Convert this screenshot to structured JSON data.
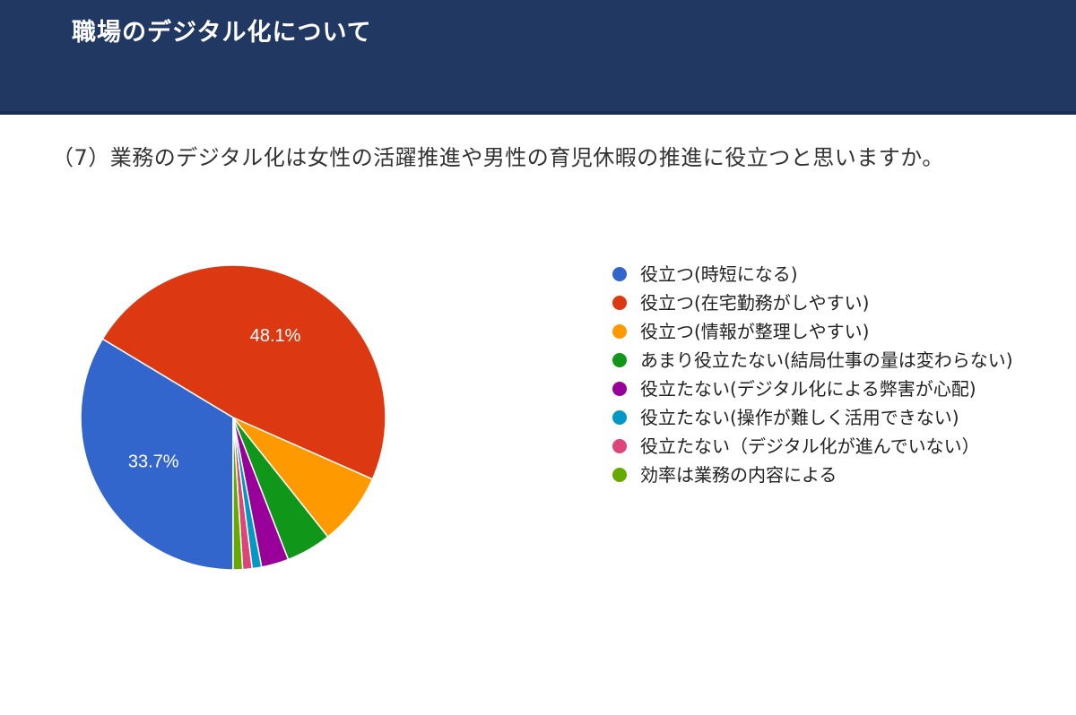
{
  "header": {
    "title": "職場のデジタル化について",
    "bg_color": "#213863"
  },
  "question": "（7）業務のデジタル化は女性の活躍推進や男性の育児休暇の推進に役立つと思いますか。",
  "chart_data": {
    "type": "pie",
    "title": "",
    "start_angle_deg": 90,
    "direction": "clockwise",
    "legend_position": "right",
    "slices": [
      {
        "label": "役立つ(時短になる)",
        "value": 33.7,
        "color": "#3366CC",
        "data_label": "33.7%"
      },
      {
        "label": "役立つ(在宅勤務がしやすい)",
        "value": 48.1,
        "color": "#DC3912",
        "data_label": "48.1%"
      },
      {
        "label": "役立つ(情報が整理しやすい)",
        "value": 7.7,
        "color": "#FF9900",
        "data_label": ""
      },
      {
        "label": "あまり役立たない(結局仕事の量は変わらない)",
        "value": 4.8,
        "color": "#109618",
        "data_label": ""
      },
      {
        "label": "役立たない(デジタル化による弊害が心配)",
        "value": 2.9,
        "color": "#990099",
        "data_label": ""
      },
      {
        "label": "役立たない(操作が難しく活用できない)",
        "value": 1.0,
        "color": "#0099C6",
        "data_label": ""
      },
      {
        "label": "役立たない（デジタル化が進んでいない）",
        "value": 1.0,
        "color": "#DD4477",
        "data_label": ""
      },
      {
        "label": "効率は業務の内容による",
        "value": 1.0,
        "color": "#66AA00",
        "data_label": ""
      }
    ]
  }
}
